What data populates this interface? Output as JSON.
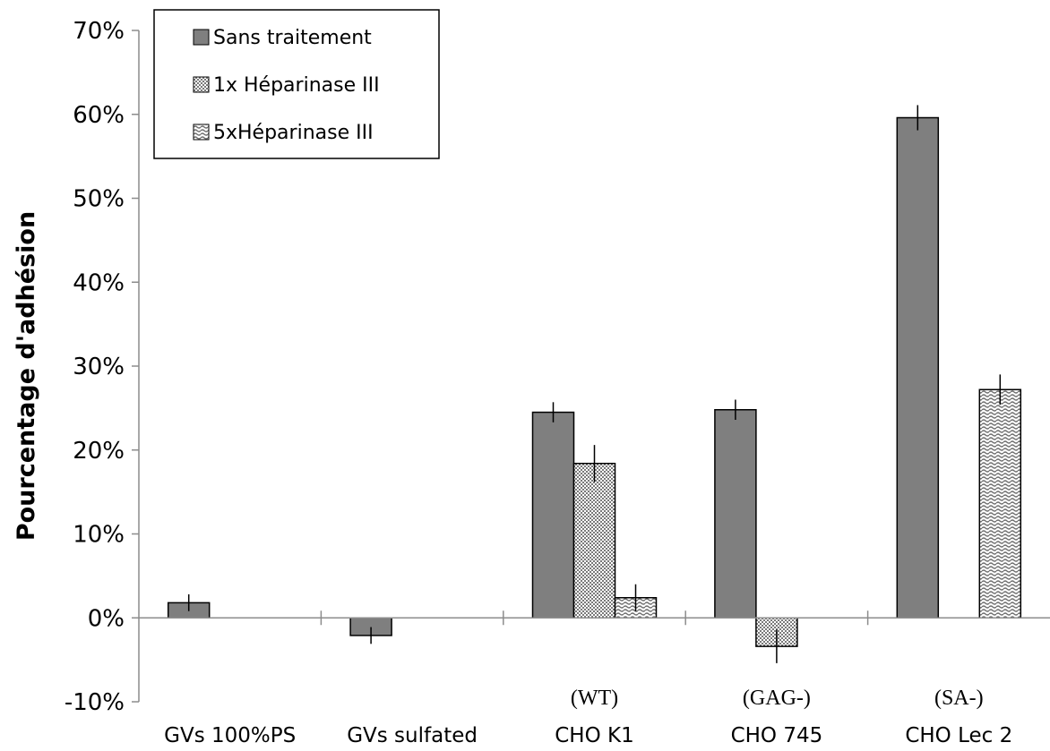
{
  "chart_data": {
    "type": "bar",
    "ylabel": "Pourcentage d'adhésion",
    "xlabel": "",
    "ylim": [
      -0.1,
      0.7
    ],
    "y_ticks": [
      -0.1,
      0.0,
      0.1,
      0.2,
      0.3,
      0.4,
      0.5,
      0.6,
      0.7
    ],
    "y_tick_labels": [
      "-10%",
      "0%",
      "10%",
      "20%",
      "30%",
      "40%",
      "50%",
      "60%",
      "70%"
    ],
    "categories": [
      "GVs 100%PS",
      "GVs sulfated",
      "CHO K1",
      "CHO 745",
      "CHO Lec 2"
    ],
    "category_sublabels": [
      "",
      "",
      "(WT)",
      "(GAG-)",
      "(SA-)"
    ],
    "grid": false,
    "legend_position": "top-left",
    "series": [
      {
        "name": "Sans traitement",
        "color": "#7f7f7f",
        "pattern": "solid",
        "values": [
          0.018,
          -0.021,
          0.245,
          0.248,
          0.596
        ],
        "errors": [
          0.01,
          0.01,
          0.012,
          0.012,
          0.015
        ]
      },
      {
        "name": "1x Héparinase III",
        "color": "#bfbfbf",
        "pattern": "dots",
        "values": [
          null,
          null,
          0.184,
          -0.034,
          null
        ],
        "errors": [
          null,
          null,
          0.022,
          0.02,
          null
        ]
      },
      {
        "name": "5xHéparinase III",
        "color": "#d9d9d9",
        "pattern": "waves",
        "values": [
          null,
          null,
          0.024,
          null,
          0.272
        ],
        "errors": [
          null,
          null,
          0.016,
          null,
          0.018
        ]
      }
    ]
  }
}
